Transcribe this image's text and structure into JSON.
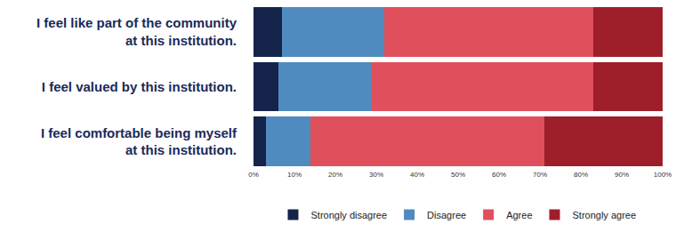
{
  "chart_data": {
    "type": "bar",
    "orientation": "horizontal",
    "stacked": true,
    "categories": [
      "I feel like part of the community at this institution.",
      "I feel valued by this institution.",
      "I feel comfortable being myself at this institution."
    ],
    "series": [
      {
        "name": "Strongly disagree",
        "color": "#14244a",
        "values": [
          7,
          6,
          3
        ]
      },
      {
        "name": "Disagree",
        "color": "#4f8bbf",
        "values": [
          25,
          23,
          11
        ]
      },
      {
        "name": "Agree",
        "color": "#e0505c",
        "values": [
          51,
          54,
          57
        ]
      },
      {
        "name": "Strongly agree",
        "color": "#9e1f2a",
        "values": [
          17,
          17,
          29
        ]
      }
    ],
    "xlim": [
      0,
      100
    ],
    "xticks": [
      {
        "value": 0,
        "label": "0%"
      },
      {
        "value": 10,
        "label": "10%"
      },
      {
        "value": 20,
        "label": "20%"
      },
      {
        "value": 30,
        "label": "30%"
      },
      {
        "value": 40,
        "label": "40%"
      },
      {
        "value": 50,
        "label": "50%"
      },
      {
        "value": 60,
        "label": "60%"
      },
      {
        "value": 70,
        "label": "70%"
      },
      {
        "value": 80,
        "label": "80%"
      },
      {
        "value": 90,
        "label": "90%"
      },
      {
        "value": 100,
        "label": "100%"
      }
    ],
    "grid": false,
    "legend": "bottom"
  }
}
